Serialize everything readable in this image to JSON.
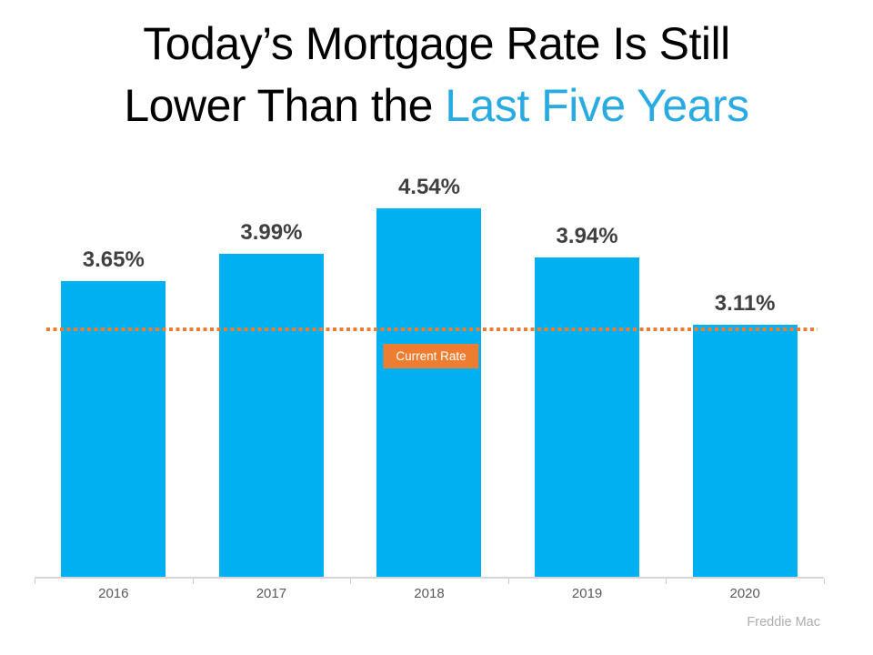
{
  "title": {
    "line1": "Today’s Mortgage Rate Is Still",
    "line2_prefix": "Lower Than the ",
    "line2_accent": "Last Five Years",
    "accent_color": "#29abe2"
  },
  "chart_data": {
    "type": "bar",
    "title": "Today’s Mortgage Rate Is Still Lower Than the Last Five Years",
    "categories": [
      "2016",
      "2017",
      "2018",
      "2019",
      "2020"
    ],
    "values": [
      3.65,
      3.99,
      4.54,
      3.94,
      3.11
    ],
    "data_labels": [
      "3.65%",
      "3.99%",
      "4.54%",
      "3.94%",
      "3.11%"
    ],
    "xlabel": "",
    "ylabel": "",
    "ylim": [
      0,
      5.4
    ],
    "grid": false,
    "y_axis_visible": false,
    "bar_color": "#00b0f0",
    "reference_line": {
      "value": 3.11,
      "label": "Current Rate",
      "color": "#ed7d31",
      "style": "dotted"
    },
    "source": "Freddie Mac"
  }
}
